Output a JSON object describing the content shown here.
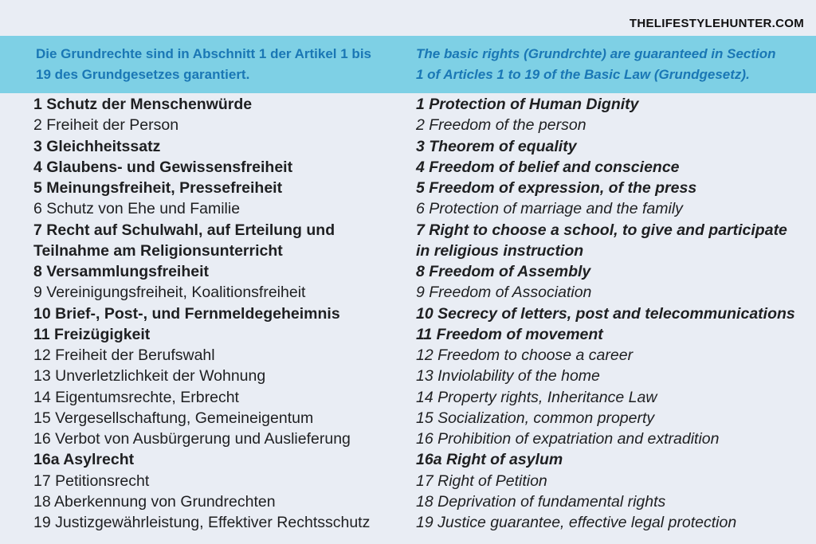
{
  "colors": {
    "page_bg": "#e9edf4",
    "banner_bg": "#7ed0e5",
    "banner_text": "#1a77b5",
    "body_text": "#1e1f21",
    "logo_text": "#101010"
  },
  "header": {
    "site": "THELIFESTYLEHUNTER.COM"
  },
  "banner": {
    "german": "Die Grundrechte sind in Abschnitt 1 der Artikel 1 bis\n19 des Grundgesetzes garantiert.",
    "english": "The basic rights (Grundrchte) are guaranteed in Section\n1 of Articles 1 to 19 of the Basic Law (Grundgesetz)."
  },
  "articles": [
    {
      "num": "1",
      "bold": true,
      "de": "1 Schutz der Menschenwürde",
      "en": "1 Protection of Human Dignity"
    },
    {
      "num": "2",
      "bold": false,
      "de": "2 Freiheit der Person",
      "en": "2 Freedom of the person"
    },
    {
      "num": "3",
      "bold": true,
      "de": "3 Gleichheitssatz",
      "en": "3 Theorem of equality"
    },
    {
      "num": "4",
      "bold": true,
      "de": "4 Glaubens- und Gewissensfreiheit",
      "en": "4 Freedom of belief and conscience"
    },
    {
      "num": "5",
      "bold": true,
      "de": "5 Meinungsfreiheit, Pressefreiheit",
      "en": "5 Freedom of expression, of the press"
    },
    {
      "num": "6",
      "bold": false,
      "de": "6 Schutz von Ehe und Familie",
      "en": "6 Protection of marriage and the family"
    },
    {
      "num": "7",
      "bold": true,
      "de": "7 Recht auf Schulwahl, auf Erteilung und\nTeilnahme am Religionsunterricht",
      "en": "7 Right to choose a school, to give and participate\nin religious instruction"
    },
    {
      "num": "8",
      "bold": true,
      "de": "8 Versammlungsfreiheit",
      "en": "8 Freedom of Assembly"
    },
    {
      "num": "9",
      "bold": false,
      "de": "9 Vereinigungsfreiheit, Koalitionsfreiheit",
      "en": "9 Freedom of Association"
    },
    {
      "num": "10",
      "bold": true,
      "de": "10 Brief-, Post-, und Fernmeldegeheimnis",
      "en": "10 Secrecy of letters, post and telecommunications"
    },
    {
      "num": "11",
      "bold": true,
      "de": "11 Freizügigkeit",
      "en": "11 Freedom of movement"
    },
    {
      "num": "12",
      "bold": false,
      "de": "12 Freiheit der Berufswahl",
      "en": "12 Freedom to choose a career"
    },
    {
      "num": "13",
      "bold": false,
      "de": "13 Unverletzlichkeit der Wohnung",
      "en": "13 Inviolability of the home"
    },
    {
      "num": "14",
      "bold": false,
      "de": "14 Eigentumsrechte, Erbrecht",
      "en": "14 Property rights, Inheritance Law"
    },
    {
      "num": "15",
      "bold": false,
      "de": "15 Vergesellschaftung, Gemeineigentum",
      "en": "15 Socialization, common property"
    },
    {
      "num": "16",
      "bold": false,
      "de": "16 Verbot von Ausbürgerung und Auslieferung",
      "en": "16 Prohibition of expatriation and extradition"
    },
    {
      "num": "16a",
      "bold": true,
      "de": "16a Asylrecht",
      "en": "16a Right of asylum"
    },
    {
      "num": "17",
      "bold": false,
      "de": "17 Petitionsrecht",
      "en": "17 Right of Petition"
    },
    {
      "num": "18",
      "bold": false,
      "de": "18 Aberkennung von Grundrechten",
      "en": "18 Deprivation of fundamental rights"
    },
    {
      "num": "19",
      "bold": false,
      "de": "19 Justizgewährleistung, Effektiver Rechtsschutz",
      "en": "19 Justice guarantee, effective legal protection"
    }
  ]
}
